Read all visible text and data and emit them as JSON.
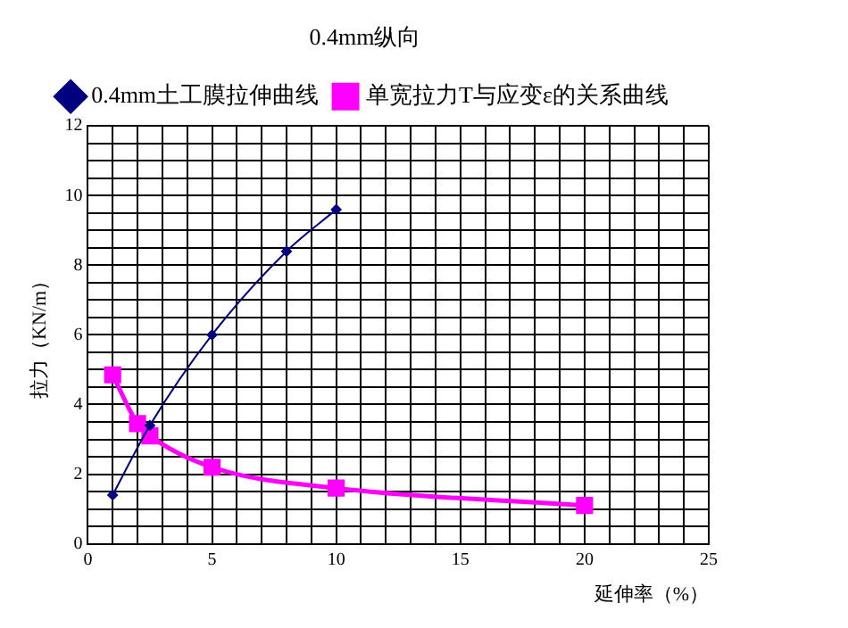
{
  "chart_data": {
    "type": "line",
    "title": "0.4mm纵向",
    "xlabel": "延伸率（%）",
    "ylabel": "拉力（KN/m）",
    "xlim": [
      0,
      25
    ],
    "ylim": [
      0,
      12
    ],
    "xticks": [
      0,
      {
        "value": 1,
        "label": null
      },
      {
        "value": 2,
        "label": null
      },
      {
        "value": 3,
        "label": null
      },
      {
        "value": 4,
        "label": null
      },
      5,
      {
        "value": 6,
        "label": null
      },
      {
        "value": 7,
        "label": null
      },
      {
        "value": 8,
        "label": null
      },
      {
        "value": 9,
        "label": null
      },
      10,
      {
        "value": 11,
        "label": null
      },
      {
        "value": 12,
        "label": null
      },
      {
        "value": 13,
        "label": null
      },
      {
        "value": 14,
        "label": null
      },
      15,
      {
        "value": 16,
        "label": null
      },
      {
        "value": 17,
        "label": null
      },
      {
        "value": 18,
        "label": null
      },
      {
        "value": 19,
        "label": null
      },
      20,
      {
        "value": 21,
        "label": null
      },
      {
        "value": 22,
        "label": null
      },
      {
        "value": 23,
        "label": null
      },
      {
        "value": 24,
        "label": null
      },
      25
    ],
    "yticks": [
      0,
      {
        "value": 0.5,
        "label": null
      },
      {
        "value": 1,
        "label": null
      },
      {
        "value": 1.5,
        "label": null
      },
      2,
      {
        "value": 2.5,
        "label": null
      },
      {
        "value": 3,
        "label": null
      },
      {
        "value": 3.5,
        "label": null
      },
      4,
      {
        "value": 4.5,
        "label": null
      },
      {
        "value": 5,
        "label": null
      },
      {
        "value": 5.5,
        "label": null
      },
      6,
      {
        "value": 6.5,
        "label": null
      },
      {
        "value": 7,
        "label": null
      },
      {
        "value": 7.5,
        "label": null
      },
      8,
      {
        "value": 8.5,
        "label": null
      },
      {
        "value": 9,
        "label": null
      },
      {
        "value": 9.5,
        "label": null
      },
      10,
      {
        "value": 10.5,
        "label": null
      },
      {
        "value": 11,
        "label": null
      },
      {
        "value": 11.5,
        "label": null
      },
      12
    ],
    "grid": true,
    "legend": "top",
    "series": [
      {
        "name": "0.4mm土工膜拉伸曲线",
        "color": "#000080",
        "marker": "diamond",
        "x": [
          1,
          2.5,
          5,
          8,
          10
        ],
        "values": [
          1.4,
          3.4,
          6.0,
          8.4,
          9.6
        ]
      },
      {
        "name": "单宽拉力T与应变ε的关系曲线",
        "color": "#ff00ff",
        "marker": "square",
        "x": [
          1,
          2,
          2.5,
          5,
          10,
          20
        ],
        "values": [
          4.85,
          3.45,
          3.1,
          2.2,
          1.6,
          1.1
        ]
      }
    ]
  }
}
